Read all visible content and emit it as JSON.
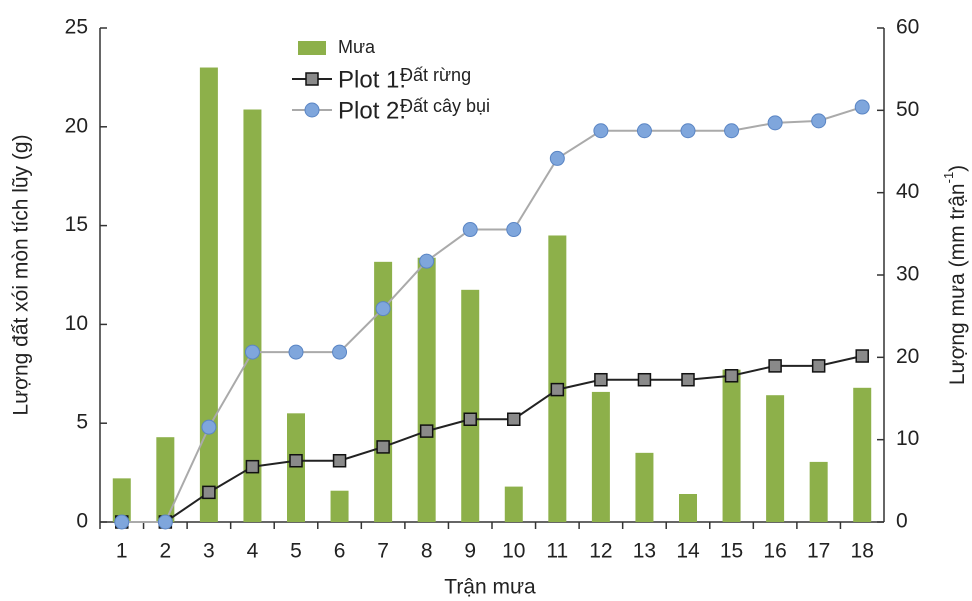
{
  "chart_data": {
    "type": "bar_line",
    "categories": [
      "1",
      "2",
      "3",
      "4",
      "5",
      "6",
      "7",
      "8",
      "9",
      "10",
      "11",
      "12",
      "13",
      "14",
      "15",
      "16",
      "17",
      "18"
    ],
    "xlabel": "Trận mưa",
    "ylabel": "Lượng đất xói mòn tích lũy (g)",
    "y2label": "Lượng mưa (mm trận",
    "y2label_sup": "-1",
    "y2label_end": ")",
    "ylim": [
      0,
      25
    ],
    "yticks": [
      0,
      5,
      10,
      15,
      20,
      25
    ],
    "y2lim": [
      0,
      60
    ],
    "y2ticks": [
      0,
      10,
      20,
      30,
      40,
      50,
      60
    ],
    "series": [
      {
        "name": "Mưa",
        "type": "bar",
        "axis": "y2",
        "color": "#8db04a",
        "values": [
          5.3,
          10.3,
          55.2,
          50.1,
          13.2,
          3.8,
          31.6,
          32.1,
          28.2,
          4.3,
          34.8,
          15.8,
          8.4,
          3.4,
          18.5,
          15.4,
          7.3,
          16.3
        ]
      },
      {
        "name": "Plot 1:",
        "description": "Đất rừng",
        "type": "line",
        "color": "#222",
        "marker": "square",
        "marker_color": "#8a8a8a",
        "values": [
          0,
          0,
          1.5,
          2.8,
          3.1,
          3.1,
          3.8,
          4.6,
          5.2,
          5.2,
          6.7,
          7.2,
          7.2,
          7.2,
          7.4,
          7.9,
          7.9,
          8.4
        ]
      },
      {
        "name": "Plot 2:",
        "description": "Đất cây bụi",
        "type": "line",
        "color": "#aaaaaa",
        "marker": "circle",
        "marker_color": "#7fa6dc",
        "values": [
          0,
          0,
          4.8,
          8.6,
          8.6,
          8.6,
          10.8,
          13.2,
          14.8,
          14.8,
          18.4,
          19.8,
          19.8,
          19.8,
          19.8,
          20.2,
          20.3,
          21.0
        ]
      }
    ]
  }
}
